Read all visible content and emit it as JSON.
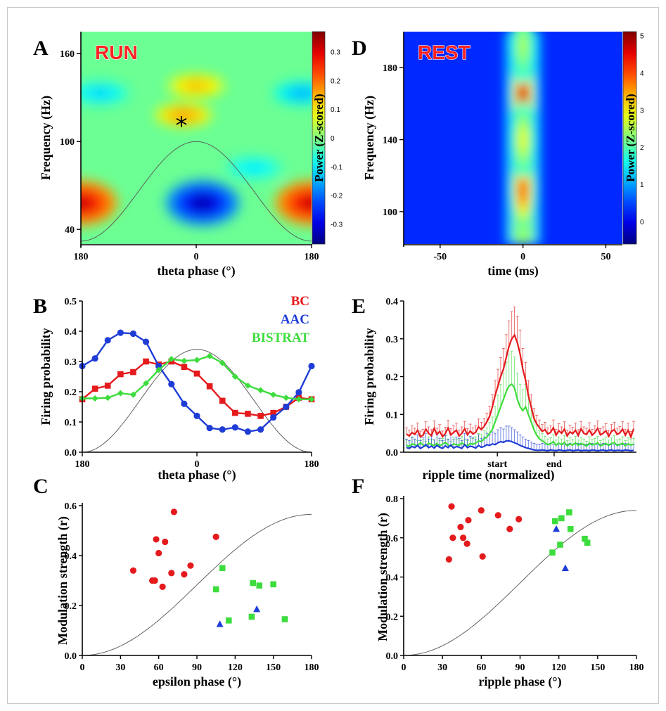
{
  "colors": {
    "bc": "#e41a1c",
    "aac": "#1f3dd6",
    "bistrat": "#3ddc3d",
    "cosine": "#555555"
  },
  "panels": {
    "A": {
      "letter": "A",
      "corner_label": "RUN",
      "marker": "*"
    },
    "B": {
      "letter": "B"
    },
    "C": {
      "letter": "C"
    },
    "D": {
      "letter": "D",
      "corner_label": "REST"
    },
    "E": {
      "letter": "E"
    },
    "F": {
      "letter": "F"
    }
  },
  "chart_data": [
    {
      "panel": "A",
      "type": "heatmap",
      "xlabel": "theta phase (°)",
      "ylabel": "Frequency (Hz)",
      "x_ticks": [
        "180",
        "0",
        "180"
      ],
      "y_ticks": [
        160,
        100,
        40
      ],
      "ylim": [
        30,
        175
      ],
      "colorbar": {
        "label": "Power (Z-scored)",
        "ticks": [
          "0.3",
          "0.2",
          "0.1",
          "0",
          "-0.1",
          "-0.2",
          "-0.3"
        ],
        "range": [
          -0.37,
          0.37
        ]
      },
      "blobs": [
        {
          "phase": 180,
          "freq": 58,
          "value": 0.34
        },
        {
          "phase": -180,
          "freq": 58,
          "value": 0.34
        },
        {
          "phase": 10,
          "freq": 58,
          "value": -0.36
        },
        {
          "phase": -20,
          "freq": 118,
          "value": 0.19
        },
        {
          "phase": 0,
          "freq": 138,
          "value": 0.16
        },
        {
          "phase": 165,
          "freq": 133,
          "value": -0.17
        },
        {
          "phase": -150,
          "freq": 133,
          "value": -0.14
        },
        {
          "phase": 90,
          "freq": 82,
          "value": -0.12
        }
      ],
      "cosine": {
        "period_deg": 360,
        "max_freq": 100,
        "min_freq": 32
      }
    },
    {
      "panel": "D",
      "type": "heatmap",
      "xlabel": "time (ms)",
      "ylabel": "Frequency (Hz)",
      "x_ticks": [
        -50,
        0,
        50
      ],
      "y_ticks": [
        180,
        140,
        100
      ],
      "xlim": [
        -72,
        60
      ],
      "ylim": [
        82,
        200
      ],
      "colorbar": {
        "label": "Power (Z-scored)",
        "ticks": [
          "5",
          "4",
          "3",
          "2",
          "1",
          "0"
        ],
        "range": [
          -0.6,
          5.1
        ]
      },
      "blobs": [
        {
          "time": 0,
          "freq": 165,
          "value": 5.0
        },
        {
          "time": 0,
          "freq": 112,
          "value": 4.3
        },
        {
          "time": 0,
          "freq": 192,
          "value": 2.6
        },
        {
          "time": 0,
          "freq": 140,
          "value": 3.0
        }
      ]
    },
    {
      "panel": "B",
      "type": "line",
      "xlabel": "theta phase (°)",
      "ylabel": "Firing probability",
      "x_ticks": [
        "180",
        "0",
        "180"
      ],
      "ylim": [
        0,
        0.5
      ],
      "y_ticks": [
        "0.0",
        "0.1",
        "0.2",
        "0.3",
        "0.4",
        "0.5"
      ],
      "phase_x": [
        -180,
        -160,
        -140,
        -120,
        -100,
        -80,
        -60,
        -40,
        -20,
        0,
        20,
        40,
        60,
        80,
        100,
        120,
        140,
        160,
        180
      ],
      "series": [
        {
          "name": "BC",
          "marker": "square",
          "values": [
            0.175,
            0.21,
            0.22,
            0.258,
            0.265,
            0.3,
            0.29,
            0.3,
            0.282,
            0.26,
            0.218,
            0.17,
            0.13,
            0.127,
            0.12,
            0.13,
            0.15,
            0.18,
            0.175
          ]
        },
        {
          "name": "AAC",
          "marker": "circle",
          "values": [
            0.285,
            0.31,
            0.37,
            0.395,
            0.392,
            0.365,
            0.285,
            0.225,
            0.16,
            0.12,
            0.08,
            0.075,
            0.082,
            0.068,
            0.075,
            0.115,
            0.15,
            0.198,
            0.285
          ]
        },
        {
          "name": "BISTRAT",
          "marker": "diamond",
          "values": [
            0.178,
            0.178,
            0.18,
            0.195,
            0.19,
            0.228,
            0.272,
            0.308,
            0.302,
            0.305,
            0.318,
            0.295,
            0.25,
            0.22,
            0.205,
            0.19,
            0.18,
            0.175,
            0.175
          ]
        }
      ],
      "cosine": {
        "period_deg": 360,
        "max": 0.34,
        "min": 0.0
      }
    },
    {
      "panel": "E",
      "type": "line",
      "xlabel": "ripple time (normalized)",
      "ylabel": "Firing probability",
      "x_ticks": [
        "start",
        "end"
      ],
      "ylim": [
        0,
        0.4
      ],
      "y_ticks": [
        "0.0",
        "0.1",
        "0.2",
        "0.3",
        "0.4"
      ],
      "x_range": [
        -1.65,
        2.45
      ],
      "x_tick_positions": [
        0,
        1
      ],
      "series": [
        {
          "name": "BC",
          "values": [
            0.048,
            0.043,
            0.052,
            0.047,
            0.058,
            0.041,
            0.045,
            0.061,
            0.05,
            0.044,
            0.063,
            0.047,
            0.055,
            0.041,
            0.049,
            0.064,
            0.046,
            0.052,
            0.058,
            0.043,
            0.05,
            0.062,
            0.046,
            0.056,
            0.048,
            0.053,
            0.067,
            0.06,
            0.068,
            0.08,
            0.095,
            0.12,
            0.15,
            0.175,
            0.2,
            0.22,
            0.25,
            0.28,
            0.3,
            0.31,
            0.29,
            0.26,
            0.22,
            0.19,
            0.15,
            0.12,
            0.09,
            0.075,
            0.065,
            0.055,
            0.06,
            0.048,
            0.052,
            0.065,
            0.045,
            0.057,
            0.05,
            0.061,
            0.043,
            0.054,
            0.049,
            0.058,
            0.044,
            0.062,
            0.05,
            0.047,
            0.059,
            0.045,
            0.052,
            0.063,
            0.046,
            0.05,
            0.057,
            0.042,
            0.055,
            0.06,
            0.047,
            0.051,
            0.061,
            0.045,
            0.058,
            0.04,
            0.062
          ]
        },
        {
          "name": "AAC",
          "values": [
            0.012,
            0.01,
            0.015,
            0.012,
            0.018,
            0.01,
            0.014,
            0.02,
            0.012,
            0.016,
            0.011,
            0.018,
            0.013,
            0.01,
            0.017,
            0.012,
            0.019,
            0.011,
            0.015,
            0.013,
            0.01,
            0.02,
            0.012,
            0.016,
            0.014,
            0.011,
            0.018,
            0.013,
            0.015,
            0.02,
            0.018,
            0.022,
            0.02,
            0.025,
            0.028,
            0.026,
            0.03,
            0.03,
            0.028,
            0.025,
            0.022,
            0.018,
            0.015,
            0.012,
            0.01,
            0.008,
            0.006,
            0.005,
            0.005,
            0.006,
            0.005,
            0.004,
            0.006,
            0.005,
            0.004,
            0.006,
            0.005,
            0.004,
            0.005,
            0.006,
            0.004,
            0.005,
            0.006,
            0.004,
            0.005,
            0.005,
            0.004,
            0.006,
            0.005,
            0.004,
            0.005,
            0.006,
            0.004,
            0.005,
            0.006,
            0.004,
            0.005,
            0.005,
            0.004,
            0.006,
            0.005,
            0.004,
            0.005
          ]
        },
        {
          "name": "BISTRAT",
          "values": [
            0.018,
            0.015,
            0.022,
            0.02,
            0.017,
            0.025,
            0.019,
            0.016,
            0.024,
            0.02,
            0.018,
            0.023,
            0.017,
            0.021,
            0.026,
            0.019,
            0.016,
            0.022,
            0.02,
            0.018,
            0.025,
            0.02,
            0.017,
            0.023,
            0.021,
            0.024,
            0.03,
            0.028,
            0.035,
            0.04,
            0.05,
            0.06,
            0.08,
            0.1,
            0.12,
            0.14,
            0.16,
            0.175,
            0.18,
            0.17,
            0.14,
            0.12,
            0.11,
            0.12,
            0.1,
            0.08,
            0.06,
            0.045,
            0.035,
            0.03,
            0.025,
            0.02,
            0.022,
            0.028,
            0.018,
            0.024,
            0.02,
            0.026,
            0.017,
            0.022,
            0.019,
            0.025,
            0.018,
            0.023,
            0.02,
            0.016,
            0.024,
            0.019,
            0.021,
            0.025,
            0.017,
            0.02,
            0.023,
            0.018,
            0.022,
            0.026,
            0.018,
            0.02,
            0.024,
            0.017,
            0.022,
            0.019,
            0.021
          ]
        }
      ]
    },
    {
      "panel": "C",
      "type": "scatter",
      "xlabel": "epsilon phase (°)",
      "ylabel": "Modulation strength (r)",
      "xlim": [
        0,
        180
      ],
      "ylim": [
        0,
        0.6
      ],
      "x_ticks": [
        0,
        30,
        60,
        90,
        120,
        150,
        180
      ],
      "y_ticks": [
        "0.0",
        "0.2",
        "0.4",
        "0.6"
      ],
      "series": [
        {
          "name": "BC",
          "marker": "circle",
          "points": [
            [
              40,
              0.34
            ],
            [
              55,
              0.3
            ],
            [
              57,
              0.3
            ],
            [
              58,
              0.465
            ],
            [
              60,
              0.41
            ],
            [
              63,
              0.275
            ],
            [
              65,
              0.455
            ],
            [
              70,
              0.33
            ],
            [
              72,
              0.575
            ],
            [
              80,
              0.325
            ],
            [
              85,
              0.36
            ],
            [
              105,
              0.475
            ]
          ]
        },
        {
          "name": "AAC",
          "marker": "triangle",
          "points": [
            [
              108,
              0.125
            ],
            [
              137,
              0.185
            ]
          ]
        },
        {
          "name": "BISTRAT",
          "marker": "square",
          "points": [
            [
              105,
              0.265
            ],
            [
              110,
              0.35
            ],
            [
              115,
              0.14
            ],
            [
              133,
              0.155
            ],
            [
              134,
              0.29
            ],
            [
              139,
              0.28
            ],
            [
              150,
              0.285
            ],
            [
              159,
              0.145
            ]
          ]
        }
      ],
      "cosine": {
        "from": 0,
        "to": 180,
        "max": 0.565
      }
    },
    {
      "panel": "F",
      "type": "scatter",
      "xlabel": "ripple phase (°)",
      "ylabel": "Modulation strength (r)",
      "xlim": [
        0,
        180
      ],
      "ylim": [
        0,
        0.8
      ],
      "x_ticks": [
        0,
        30,
        60,
        90,
        120,
        150,
        180
      ],
      "y_ticks": [
        "0.0",
        "0.2",
        "0.4",
        "0.6",
        "0.8"
      ],
      "series": [
        {
          "name": "BC",
          "marker": "circle",
          "points": [
            [
              35,
              0.49
            ],
            [
              37,
              0.76
            ],
            [
              38,
              0.6
            ],
            [
              44,
              0.655
            ],
            [
              46,
              0.6
            ],
            [
              49,
              0.57
            ],
            [
              50,
              0.69
            ],
            [
              60,
              0.74
            ],
            [
              61,
              0.505
            ],
            [
              73,
              0.715
            ],
            [
              82,
              0.645
            ],
            [
              89,
              0.695
            ]
          ]
        },
        {
          "name": "AAC",
          "marker": "triangle",
          "points": [
            [
              118,
              0.645
            ],
            [
              125,
              0.445
            ]
          ]
        },
        {
          "name": "BISTRAT",
          "marker": "square",
          "points": [
            [
              115,
              0.525
            ],
            [
              117,
              0.685
            ],
            [
              121,
              0.565
            ],
            [
              122,
              0.7
            ],
            [
              128,
              0.73
            ],
            [
              129,
              0.645
            ],
            [
              140,
              0.595
            ],
            [
              142,
              0.575
            ]
          ]
        }
      ],
      "cosine": {
        "from": 0,
        "to": 180,
        "max": 0.74
      }
    }
  ]
}
